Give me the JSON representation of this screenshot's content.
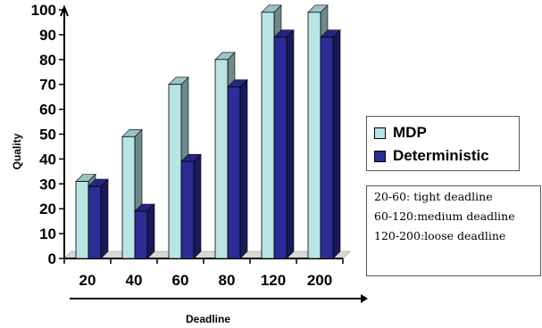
{
  "chart_data": {
    "type": "bar",
    "categories": [
      "20",
      "40",
      "60",
      "80",
      "120",
      "200"
    ],
    "series": [
      {
        "name": "MDP",
        "values": [
          31,
          49,
          70,
          80,
          99,
          99
        ],
        "color": "#b8e4e4"
      },
      {
        "name": "Deterministic",
        "values": [
          29,
          19,
          39,
          69,
          89,
          89
        ],
        "color": "#2c2c96"
      }
    ],
    "xlabel": "Deadline",
    "ylabel": "Quality",
    "ylim": [
      0,
      100
    ],
    "yticks": [
      "0",
      "10",
      "20",
      "30",
      "40",
      "50",
      "60",
      "70",
      "80",
      "90",
      "100"
    ],
    "grid": false,
    "bar_style": "3d",
    "legend_position": "right"
  },
  "notes": [
    "20-60: tight deadline",
    "60-120:medium deadline",
    "120-200:loose deadline"
  ]
}
